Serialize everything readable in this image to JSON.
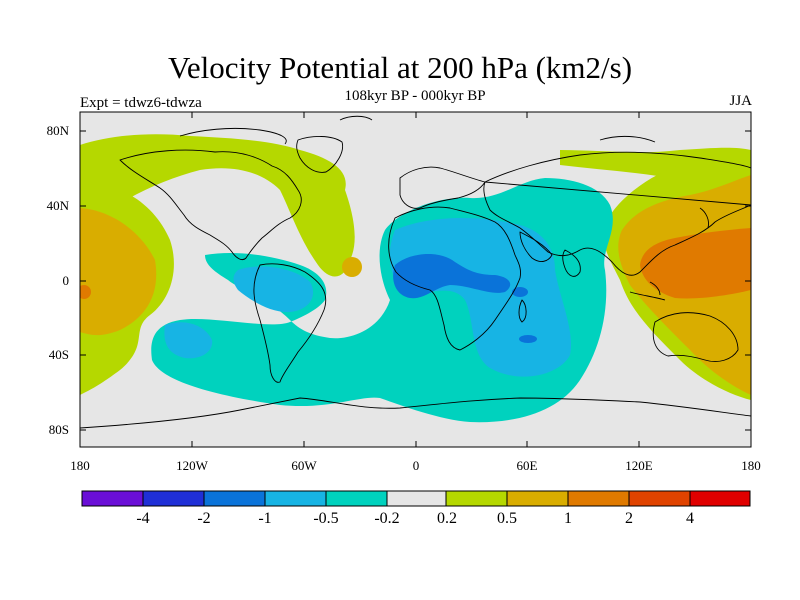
{
  "title": "Velocity Potential at 200 hPa (km2/s)",
  "subtitle": "108kyr BP - 000kyr BP",
  "experiment": "Expt = tdwz6-tdwza",
  "season": "JJA",
  "chart_data": {
    "type": "heatmap",
    "projection": "cylindrical-equidistant",
    "x_range": [
      -180,
      180
    ],
    "y_range": [
      -90,
      90
    ],
    "lat_ticks": [
      "80N",
      "40N",
      "0",
      "40S",
      "80S"
    ],
    "lon_ticks": [
      "180",
      "120W",
      "60W",
      "0",
      "60E",
      "120E",
      "180"
    ],
    "colorbar": {
      "labels": [
        "-4",
        "-2",
        "-1",
        "-0.5",
        "-0.2",
        "0.2",
        "0.5",
        "1",
        "2",
        "4"
      ],
      "colors": [
        "#6a0fd6",
        "#1f2fd6",
        "#0a73d9",
        "#17b4e4",
        "#00d2be",
        "#e6e6e6",
        "#b5d800",
        "#d9ad00",
        "#e07a00",
        "#e04300",
        "#e00000"
      ]
    }
  }
}
